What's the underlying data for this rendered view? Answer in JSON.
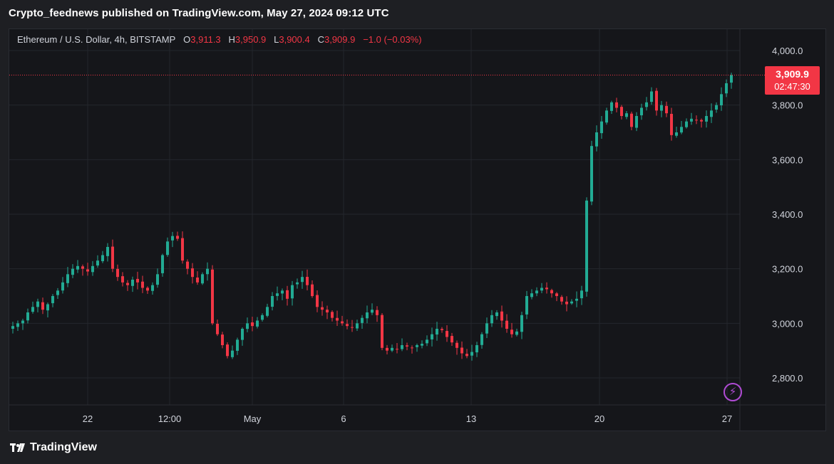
{
  "header": {
    "publisher": "Crypto_feednews published on TradingView.com, May 27, 2024 09:12 UTC"
  },
  "symbol": {
    "name": "Ethereum / U.S. Dollar, 4h, BITSTAMP",
    "open_label": "O",
    "open": "3,911.3",
    "high_label": "H",
    "high": "3,950.9",
    "low_label": "L",
    "low": "3,900.4",
    "close_label": "C",
    "close": "3,909.9",
    "change": "−1.0 (−0.03%)"
  },
  "price_badge": {
    "price": "3,909.9",
    "countdown": "02:47:30"
  },
  "footer": {
    "brand": "TradingView"
  },
  "colors": {
    "up": "#22ab94",
    "down": "#f23645",
    "background": "#15161a",
    "grid": "#24262c",
    "axis_text": "#d1d4dc"
  },
  "icons": {
    "bolt": "lightning-icon",
    "logo": "tradingview-logo-icon"
  },
  "chart_data": {
    "type": "candlestick",
    "symbol": "ETHUSD",
    "interval": "4h",
    "y_axis": {
      "ticks": [
        "4,000.0",
        "3,800.0",
        "3,600.0",
        "3,400.0",
        "3,200.0",
        "3,000.0",
        "2,800.0"
      ],
      "range": [
        2720,
        4040
      ]
    },
    "x_axis": {
      "tick_labels": [
        "22",
        "12:00",
        "May",
        "6",
        "13",
        "20",
        "27"
      ]
    },
    "last_price": 3909.9,
    "price_line": 3909.9,
    "approx_close_path": [
      2990,
      3000,
      3010,
      3040,
      3060,
      3080,
      3050,
      3070,
      3100,
      3120,
      3150,
      3180,
      3200,
      3210,
      3200,
      3190,
      3210,
      3230,
      3250,
      3280,
      3200,
      3170,
      3150,
      3140,
      3160,
      3150,
      3130,
      3120,
      3140,
      3180,
      3250,
      3300,
      3320,
      3310,
      3230,
      3200,
      3170,
      3150,
      3180,
      3200,
      3000,
      2960,
      2920,
      2880,
      2900,
      2940,
      2980,
      3000,
      2990,
      3010,
      3030,
      3060,
      3100,
      3110,
      3120,
      3090,
      3140,
      3150,
      3170,
      3140,
      3100,
      3060,
      3050,
      3040,
      3020,
      3010,
      3000,
      2990,
      2985,
      3000,
      3020,
      3040,
      3050,
      3030,
      2910,
      2900,
      2910,
      2905,
      2920,
      2915,
      2910,
      2920,
      2925,
      2940,
      2960,
      2980,
      2975,
      2950,
      2930,
      2910,
      2890,
      2880,
      2895,
      2920,
      2960,
      3000,
      3030,
      3040,
      3010,
      2980,
      2960,
      2970,
      3030,
      3100,
      3110,
      3120,
      3130,
      3125,
      3110,
      3100,
      3080,
      3070,
      3080,
      3090,
      3120,
      3450,
      3650,
      3700,
      3740,
      3780,
      3810,
      3790,
      3760,
      3770,
      3720,
      3760,
      3790,
      3810,
      3850,
      3780,
      3800,
      3770,
      3690,
      3700,
      3720,
      3740,
      3750,
      3745,
      3740,
      3760,
      3780,
      3800,
      3840,
      3880,
      3910
    ]
  }
}
